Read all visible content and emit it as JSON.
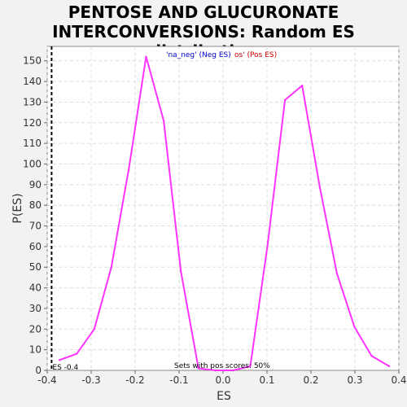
{
  "chart_data": {
    "type": "line",
    "title_line1": "PENTOSE AND GLUCURONATE",
    "title_line2": "INTERCONVERSIONS: Random ES distribution",
    "xlabel": "ES",
    "ylabel": "P(ES)",
    "xlim": [
      -0.4,
      0.4
    ],
    "ylim": [
      0,
      157
    ],
    "x_ticks": [
      -0.4,
      -0.3,
      -0.2,
      -0.1,
      0.0,
      0.1,
      0.2,
      0.3,
      0.4
    ],
    "x_tick_labels": [
      "-0.4",
      "-0.3",
      "-0.2",
      "-0.1",
      "0.0",
      "0.1",
      "0.2",
      "0.3",
      "0.4"
    ],
    "y_ticks": [
      0,
      10,
      20,
      30,
      40,
      50,
      60,
      70,
      80,
      90,
      100,
      110,
      120,
      130,
      140,
      150
    ],
    "grid": true,
    "series": [
      {
        "color": "#ff33ff",
        "x": [
          -0.372,
          -0.333,
          -0.293,
          -0.254,
          -0.214,
          -0.175,
          -0.135,
          -0.096,
          -0.056,
          -0.017,
          0.023,
          0.062,
          0.101,
          0.141,
          0.18,
          0.22,
          0.259,
          0.299,
          0.338,
          0.378
        ],
        "y": [
          5,
          8,
          20,
          50,
          98,
          152,
          121,
          48,
          1,
          0,
          0,
          2,
          60,
          131,
          138,
          89,
          47,
          21,
          7,
          2
        ]
      }
    ],
    "marker": {
      "x": -0.39,
      "label": "ES -0.4"
    },
    "legend": {
      "position": "top-center",
      "neg_label": "'na_neg' (Neg ES)",
      "neg_color": "#0000cc",
      "pos_label": "'na_pos' (Pos ES)",
      "pos_visible_label": "os' (Pos ES)",
      "pos_color": "#cc0000"
    },
    "annotation": "Sets with pos scores: 50%"
  }
}
